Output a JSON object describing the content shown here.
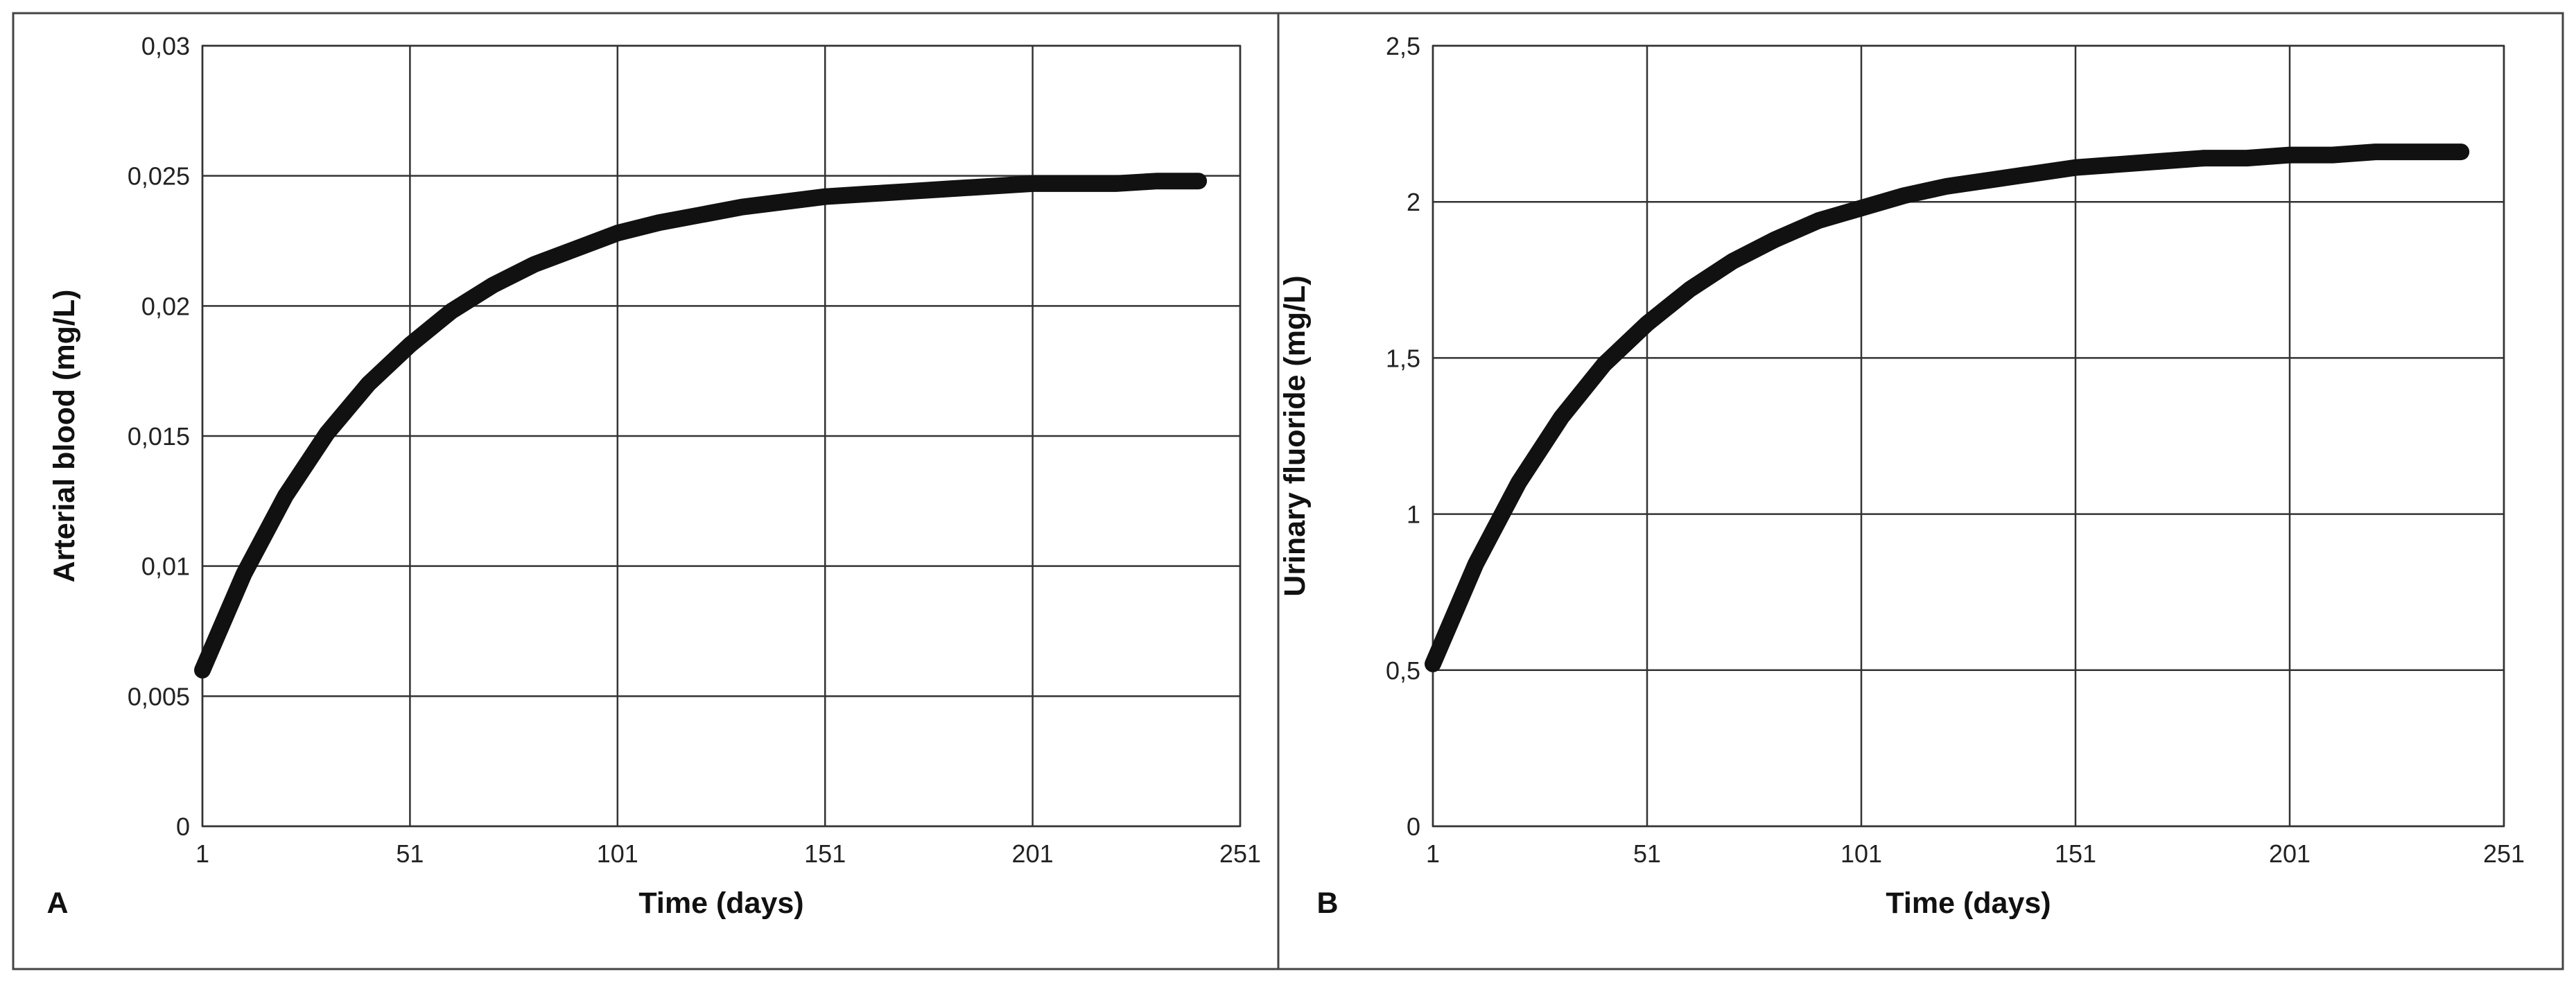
{
  "chart_data": [
    {
      "type": "line",
      "panel_label": "A",
      "xlabel": "Time (days)",
      "ylabel": "Arterial blood (mg/L)",
      "xlim": [
        1,
        251
      ],
      "xticks": [
        1,
        51,
        101,
        151,
        201,
        251
      ],
      "ylim": [
        0,
        0.03
      ],
      "yticks": [
        0,
        {
          "value": 0.005,
          "label": "0,005"
        },
        {
          "value": 0.01,
          "label": "0,01"
        },
        {
          "value": 0.015,
          "label": "0,015"
        },
        {
          "value": 0.02,
          "label": "0,02"
        },
        {
          "value": 0.025,
          "label": "0,025"
        },
        {
          "value": 0.03,
          "label": "0,03"
        }
      ],
      "grid": true,
      "x": [
        1,
        11,
        21,
        31,
        41,
        51,
        61,
        71,
        81,
        91,
        101,
        111,
        121,
        131,
        141,
        151,
        161,
        171,
        181,
        191,
        201,
        211,
        221,
        231,
        241
      ],
      "series": [
        {
          "color": "#111111",
          "values": [
            0.006,
            0.0097,
            0.0127,
            0.0151,
            0.017,
            0.0185,
            0.0198,
            0.0208,
            0.0216,
            0.0222,
            0.0228,
            0.0232,
            0.0235,
            0.0238,
            0.024,
            0.0242,
            0.0243,
            0.0244,
            0.0245,
            0.0246,
            0.0247,
            0.0247,
            0.0247,
            0.0248,
            0.0248
          ]
        }
      ]
    },
    {
      "type": "line",
      "panel_label": "B",
      "xlabel": "Time (days)",
      "ylabel": "Urinary fluoride (mg/L)",
      "xlim": [
        1,
        251
      ],
      "xticks": [
        1,
        51,
        101,
        151,
        201,
        251
      ],
      "ylim": [
        0,
        2.5
      ],
      "yticks": [
        0,
        {
          "value": 0.5,
          "label": "0,5"
        },
        1,
        {
          "value": 1.5,
          "label": "1,5"
        },
        2,
        {
          "value": 2.5,
          "label": "2,5"
        }
      ],
      "grid": true,
      "x": [
        1,
        11,
        21,
        31,
        41,
        51,
        61,
        71,
        81,
        91,
        101,
        111,
        121,
        131,
        141,
        151,
        161,
        171,
        181,
        191,
        201,
        211,
        221,
        231,
        241
      ],
      "series": [
        {
          "color": "#111111",
          "values": [
            0.52,
            0.84,
            1.1,
            1.31,
            1.48,
            1.61,
            1.72,
            1.81,
            1.88,
            1.94,
            1.98,
            2.02,
            2.05,
            2.07,
            2.09,
            2.11,
            2.12,
            2.13,
            2.14,
            2.14,
            2.15,
            2.15,
            2.16,
            2.16,
            2.16
          ]
        }
      ]
    }
  ]
}
